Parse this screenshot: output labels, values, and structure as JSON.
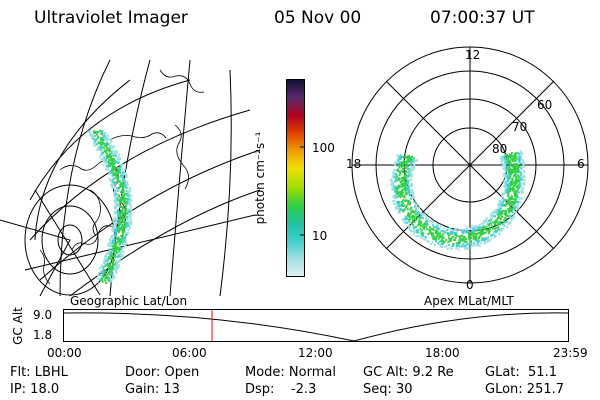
{
  "header": {
    "title": "Ultraviolet Imager",
    "date": "05 Nov 00",
    "time": "07:00:37 UT"
  },
  "colorbar": {
    "title": "photon cm⁻²s⁻¹",
    "ticks": [
      "100",
      "10"
    ],
    "colors": [
      "#111133",
      "#5a2a6e",
      "#b00020",
      "#e04000",
      "#f09a00",
      "#f0e000",
      "#a0e000",
      "#30d040",
      "#20c0a0",
      "#40d0d0",
      "#a0e0e0",
      "#e0f0f0"
    ]
  },
  "geo_map": {
    "label": "Geographic Lat/Lon"
  },
  "polar_map": {
    "label": "Apex MLat/MLT",
    "mlt_labels": {
      "top": "12",
      "left": "18",
      "right": "6",
      "bottom": "0"
    },
    "lat_labels": [
      "60",
      "70",
      "80"
    ]
  },
  "altitude_plot": {
    "ylabel": "GC Alt",
    "yticks": [
      "9.0",
      "1.8"
    ],
    "xticks": [
      "00:00",
      "06:00",
      "12:00",
      "18:00",
      "23:59"
    ],
    "marker_time": "07:00",
    "marker_color": "#ff0000"
  },
  "info": {
    "filter": "Flt: LBHL",
    "ip": "IP: 18.0",
    "door": "Door: Open",
    "gain": "Gain: 13",
    "mode": "Mode: Normal",
    "dsp": "Dsp:    -2.3",
    "gc_alt": "GC Alt: 9.2 Re",
    "seq": "Seq: 30",
    "glat": "GLat:  51.1",
    "glon": "GLon: 251.7"
  },
  "colors": {
    "aurora_main": "#30d040",
    "aurora_edge": "#40d0d0",
    "aurora_faint": "#a0e0e0"
  }
}
